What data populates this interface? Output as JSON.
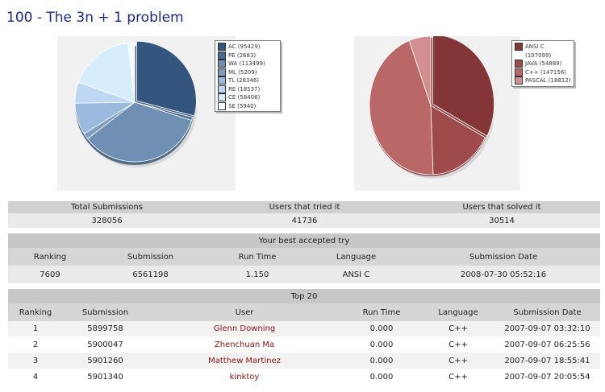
{
  "title": "100 - The 3n + 1 problem",
  "verdict_chart": {
    "legend": [
      {
        "label": "AC (95429)",
        "value": 95429,
        "color": "#34557d"
      },
      {
        "label": "PE (2683)",
        "value": 2683,
        "color": "#456a94"
      },
      {
        "label": "WA (113499)",
        "value": 113499,
        "color": "#6f8fb3"
      },
      {
        "label": "ML (5209)",
        "value": 5209,
        "color": "#7e9bc0"
      },
      {
        "label": "TL (28346)",
        "value": 28346,
        "color": "#9cb9de"
      },
      {
        "label": "RE (18537)",
        "value": 18537,
        "color": "#bdd7f4"
      },
      {
        "label": "CE (58406)",
        "value": 58406,
        "color": "#d6edfb"
      },
      {
        "label": "SE (5940)",
        "value": 5940,
        "color": "#f6fbff"
      }
    ]
  },
  "language_chart": {
    "legend": [
      {
        "label": "ANSI C (107099)",
        "value": 107099,
        "color": "#843636"
      },
      {
        "label": "JAVA (54889)",
        "value": 54889,
        "color": "#9f4b4b"
      },
      {
        "label": "C++ (147156)",
        "value": 147156,
        "color": "#b96767"
      },
      {
        "label": "PASCAL (18812)",
        "value": 18812,
        "color": "#d49090"
      }
    ]
  },
  "stats": {
    "headers": [
      "Total Submissions",
      "Users that tried it",
      "Users that solved it"
    ],
    "values": [
      "328056",
      "41736",
      "30514"
    ]
  },
  "best": {
    "title": "Your best accepted try",
    "headers": [
      "Ranking",
      "Submission",
      "Run Time",
      "Language",
      "Submission Date"
    ],
    "values": [
      "7609",
      "6561198",
      "1.150",
      "ANSI C",
      "2008-07-30 05:52:16"
    ]
  },
  "top20": {
    "title": "Top 20",
    "headers": [
      "Ranking",
      "Submission",
      "User",
      "Run Time",
      "Language",
      "Submission Date"
    ],
    "rows": [
      [
        "1",
        "5899758",
        "Glenn Downing",
        "0.000",
        "C++",
        "2007-09-07 03:32:10"
      ],
      [
        "2",
        "5900047",
        "Zhenchuan Ma",
        "0.000",
        "C++",
        "2007-09-07 06:25:56"
      ],
      [
        "3",
        "5901260",
        "Matthew Martinez",
        "0.000",
        "C++",
        "2007-09-07 18:55:41"
      ],
      [
        "4",
        "5901340",
        "kinktoy",
        "0.000",
        "C++",
        "2007-09-07 20:05:54"
      ]
    ]
  }
}
